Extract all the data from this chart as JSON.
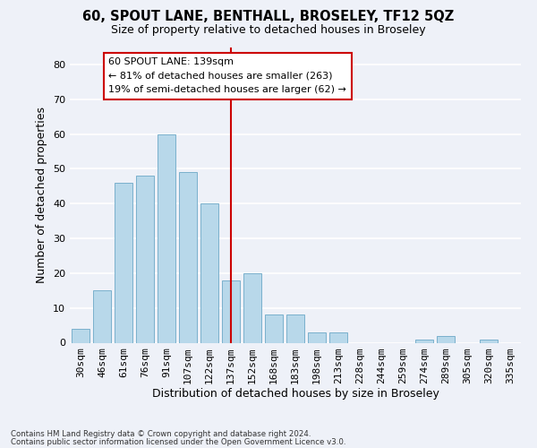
{
  "title": "60, SPOUT LANE, BENTHALL, BROSELEY, TF12 5QZ",
  "subtitle": "Size of property relative to detached houses in Broseley",
  "xlabel": "Distribution of detached houses by size in Broseley",
  "ylabel": "Number of detached properties",
  "bar_labels": [
    "30sqm",
    "46sqm",
    "61sqm",
    "76sqm",
    "91sqm",
    "107sqm",
    "122sqm",
    "137sqm",
    "152sqm",
    "168sqm",
    "183sqm",
    "198sqm",
    "213sqm",
    "228sqm",
    "244sqm",
    "259sqm",
    "274sqm",
    "289sqm",
    "305sqm",
    "320sqm",
    "335sqm"
  ],
  "bar_values": [
    4,
    15,
    46,
    48,
    60,
    49,
    40,
    18,
    20,
    8,
    8,
    3,
    3,
    0,
    0,
    0,
    1,
    2,
    0,
    1,
    0
  ],
  "bar_color": "#b8d8ea",
  "bar_edge_color": "#7ab0cc",
  "highlight_line_color": "#cc0000",
  "highlight_line_index": 7,
  "annotation_title": "60 SPOUT LANE: 139sqm",
  "annotation_line1": "← 81% of detached houses are smaller (263)",
  "annotation_line2": "19% of semi-detached houses are larger (62) →",
  "annotation_box_facecolor": "#ffffff",
  "annotation_box_edgecolor": "#cc0000",
  "background_color": "#eef1f8",
  "grid_color": "#ffffff",
  "ylim": [
    0,
    85
  ],
  "yticks": [
    0,
    10,
    20,
    30,
    40,
    50,
    60,
    70,
    80
  ],
  "title_fontsize": 10.5,
  "subtitle_fontsize": 9,
  "footnote1": "Contains HM Land Registry data © Crown copyright and database right 2024.",
  "footnote2": "Contains public sector information licensed under the Open Government Licence v3.0."
}
